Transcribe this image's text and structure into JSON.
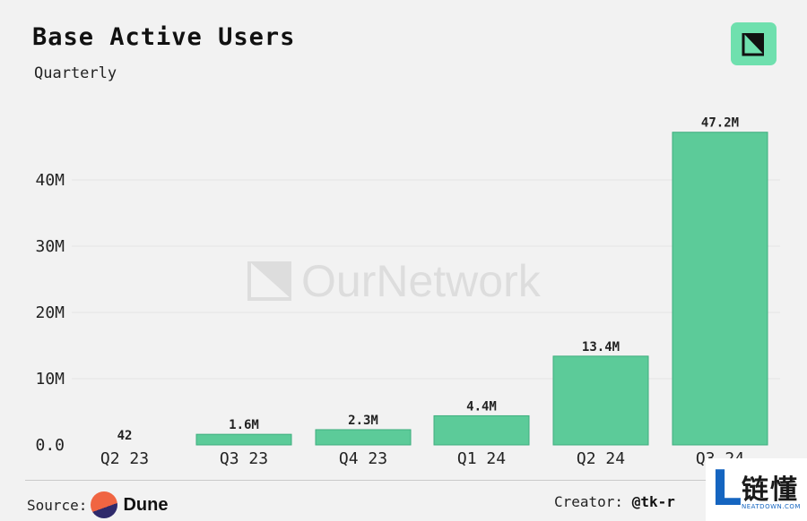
{
  "chart_data": {
    "type": "bar",
    "title": "Base Active Users",
    "subtitle": "Quarterly",
    "categories": [
      "Q2 23",
      "Q3 23",
      "Q4 23",
      "Q1 24",
      "Q2 24",
      "Q3 24"
    ],
    "values": [
      42,
      1600000,
      2300000,
      4400000,
      13400000,
      47200000
    ],
    "data_labels": [
      "42",
      "1.6M",
      "2.3M",
      "4.4M",
      "13.4M",
      "47.2M"
    ],
    "yticks": [
      0,
      10000000,
      20000000,
      30000000,
      40000000
    ],
    "ytick_labels": [
      "0.0",
      "10M",
      "20M",
      "30M",
      "40M"
    ],
    "ylim": [
      0,
      50000000
    ],
    "grid": true,
    "bar_color": "#5ccb99"
  },
  "watermark": "OurNetwork",
  "footer": {
    "source_label": "Source:",
    "source_name": "Dune",
    "creator_label": "Creator:",
    "creator_handle": "@tk-r"
  },
  "badge": {
    "letter": "L",
    "text_cn": "链懂",
    "text_en": "NEATDOWN.COM"
  },
  "colors": {
    "background": "#f2f2f2",
    "bar": "#5ccb99",
    "logo": "#6fe0ae",
    "badge_blue": "#1565c0"
  }
}
